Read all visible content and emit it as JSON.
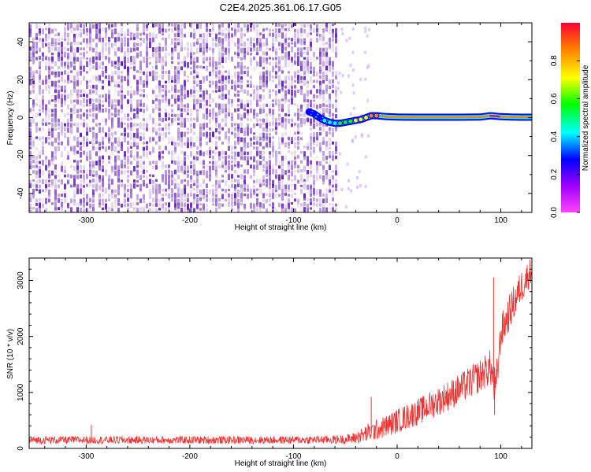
{
  "title": "C2E4.2025.361.06.17.G05",
  "colors": {
    "trace": "#ee3333",
    "spectro_noise": "#7a1cf0",
    "grid": "#000000"
  },
  "chart_data": [
    {
      "type": "heatmap",
      "title": "C2E4.2025.361.06.17.G05",
      "xlabel": "Height of straight line (km)",
      "ylabel": "Frequency (Hz)",
      "xlim": [
        -355,
        130
      ],
      "ylim": [
        -50,
        50
      ],
      "xticks": [
        -300,
        -200,
        -100,
        0,
        100
      ],
      "yticks": [
        -40,
        -20,
        0,
        20,
        40
      ],
      "colorbar": {
        "label": "Normalized spectral amplitude",
        "range": [
          0,
          1
        ],
        "ticks": [
          "0.0",
          "0.2",
          "0.4",
          "0.6",
          "0.8"
        ],
        "colors": [
          "#ff44ff",
          "#a000ff",
          "#0000ff",
          "#00ffff",
          "#00ff00",
          "#ffff00",
          "#ff0000"
        ]
      },
      "noise_region_x": [
        -355,
        -58
      ],
      "signal_track": {
        "x": [
          -85,
          -80,
          -75,
          -70,
          -65,
          -60,
          -55,
          -50,
          -45,
          -40,
          -35,
          -30,
          -25,
          -20,
          -10,
          0,
          20,
          40,
          60,
          80,
          90,
          100,
          110,
          120,
          130
        ],
        "freq": [
          3,
          2,
          0,
          -1.5,
          -2.5,
          -3,
          -3,
          -2.5,
          -2,
          -1.5,
          -1,
          0,
          1,
          1,
          0.5,
          0.3,
          0.2,
          0.2,
          0.2,
          0.3,
          1,
          0.5,
          0.3,
          0.2,
          0.2
        ],
        "amplitude": [
          0.3,
          0.35,
          0.4,
          0.45,
          0.5,
          0.55,
          0.6,
          0.65,
          0.7,
          0.75,
          0.8,
          0.85,
          0.9,
          0.95,
          0.97,
          0.98,
          0.99,
          0.99,
          0.99,
          0.99,
          1,
          0.99,
          0.98,
          0.97,
          0.95
        ]
      }
    },
    {
      "type": "line",
      "xlabel": "Height of straight line (km)",
      "ylabel": "SNR (10 * v/v)",
      "xlim": [
        -355,
        130
      ],
      "ylim": [
        0,
        3400
      ],
      "xticks": [
        -300,
        -200,
        -100,
        0,
        100
      ],
      "yticks": [
        0,
        1000,
        2000,
        3000
      ],
      "envelope": {
        "x": [
          -355,
          -300,
          -200,
          -100,
          -50,
          -40,
          -30,
          -20,
          -10,
          0,
          20,
          40,
          60,
          80,
          90,
          95,
          100,
          110,
          120,
          130
        ],
        "mean": [
          150,
          150,
          150,
          150,
          160,
          190,
          260,
          330,
          400,
          490,
          650,
          850,
          1050,
          1300,
          1450,
          1000,
          2050,
          2500,
          2900,
          3200
        ],
        "spread": [
          70,
          70,
          70,
          70,
          80,
          110,
          160,
          190,
          200,
          220,
          240,
          260,
          280,
          300,
          320,
          400,
          320,
          320,
          300,
          250
        ]
      },
      "spikes": [
        {
          "x": -295,
          "y": 420
        },
        {
          "x": -25,
          "y": 920
        },
        {
          "x": 93,
          "y": 3050
        },
        {
          "x": 94,
          "y": 600
        }
      ]
    }
  ]
}
